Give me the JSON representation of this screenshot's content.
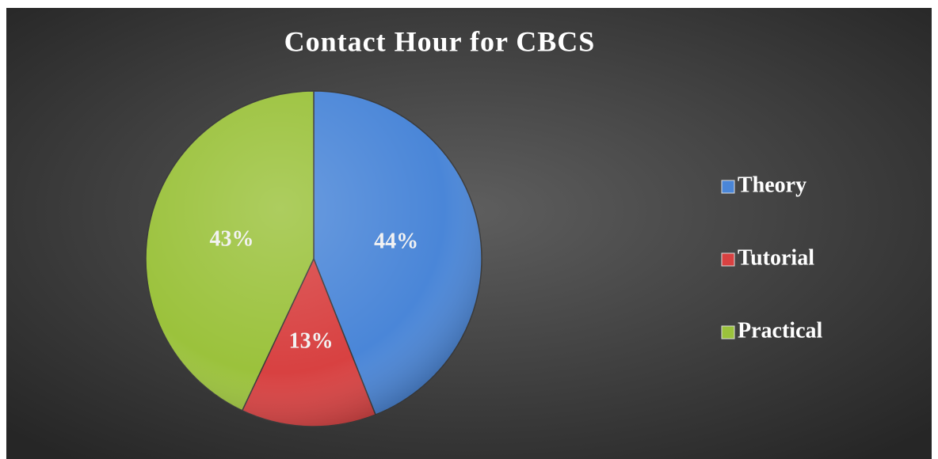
{
  "chart_data": {
    "type": "pie",
    "title": "Contact Hour for CBCS",
    "categories": [
      "Theory",
      "Tutorial",
      "Practical"
    ],
    "values": [
      44,
      13,
      43
    ],
    "value_labels": [
      "44%",
      "13%",
      "43%"
    ],
    "colors": [
      "#4a86d8",
      "#d84141",
      "#9bc23c"
    ],
    "legend": "right"
  }
}
